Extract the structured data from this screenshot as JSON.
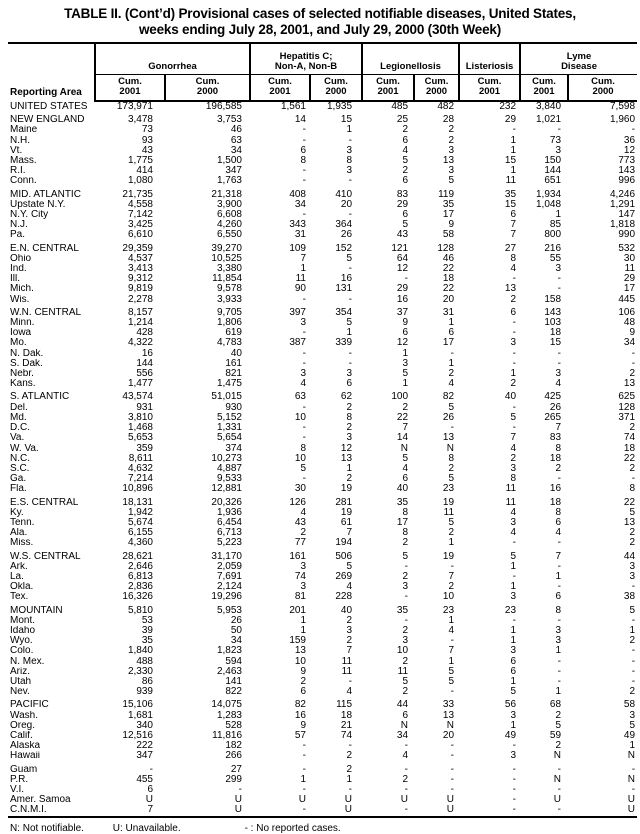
{
  "title": {
    "line1": "TABLE II. (Cont’d) Provisional cases of selected notifiable diseases, United States,",
    "line2": "weeks ending July 28, 2001, and July 29, 2000 (30th Week)"
  },
  "header": {
    "reporting_area": "Reporting Area",
    "groups": [
      {
        "label": "Gonorrhea",
        "span": 2
      },
      {
        "label": "Hepatitis C;\nNon-A, Non-B",
        "span": 2
      },
      {
        "label": "Legionellosis",
        "span": 2
      },
      {
        "label": "Listeriosis",
        "span": 1
      },
      {
        "label": "Lyme\nDisease",
        "span": 2
      }
    ],
    "leaf_cols": [
      {
        "label": "Cum.",
        "year": "2001"
      },
      {
        "label": "Cum.",
        "year": "2000"
      },
      {
        "label": "Cum.",
        "year": "2001"
      },
      {
        "label": "Cum.",
        "year": "2000"
      },
      {
        "label": "Cum.",
        "year": "2001"
      },
      {
        "label": "Cum.",
        "year": "2000"
      },
      {
        "label": "Cum.",
        "year": "2001"
      },
      {
        "label": "Cum.",
        "year": "2001"
      },
      {
        "label": "Cum.",
        "year": "2000"
      }
    ]
  },
  "sections": [
    {
      "rows": [
        [
          "UNITED STATES",
          "173,971",
          "196,585",
          "1,561",
          "1,935",
          "485",
          "482",
          "232",
          "3,840",
          "7,598"
        ]
      ]
    },
    {
      "rows": [
        [
          "NEW ENGLAND",
          "3,478",
          "3,753",
          "14",
          "15",
          "25",
          "28",
          "29",
          "1,021",
          "1,960"
        ],
        [
          "Maine",
          "73",
          "46",
          "-",
          "1",
          "2",
          "2",
          "-",
          "-",
          "-"
        ],
        [
          "N.H.",
          "93",
          "63",
          "-",
          "-",
          "6",
          "2",
          "1",
          "73",
          "36"
        ],
        [
          "Vt.",
          "43",
          "34",
          "6",
          "3",
          "4",
          "3",
          "1",
          "3",
          "12"
        ],
        [
          "Mass.",
          "1,775",
          "1,500",
          "8",
          "8",
          "5",
          "13",
          "15",
          "150",
          "773"
        ],
        [
          "R.I.",
          "414",
          "347",
          "-",
          "3",
          "2",
          "3",
          "1",
          "144",
          "143"
        ],
        [
          "Conn.",
          "1,080",
          "1,763",
          "-",
          "-",
          "6",
          "5",
          "11",
          "651",
          "996"
        ]
      ]
    },
    {
      "rows": [
        [
          "MID. ATLANTIC",
          "21,735",
          "21,318",
          "408",
          "410",
          "83",
          "119",
          "35",
          "1,934",
          "4,246"
        ],
        [
          "Upstate N.Y.",
          "4,558",
          "3,900",
          "34",
          "20",
          "29",
          "35",
          "15",
          "1,048",
          "1,291"
        ],
        [
          "N.Y. City",
          "7,142",
          "6,608",
          "-",
          "-",
          "6",
          "17",
          "6",
          "1",
          "147"
        ],
        [
          "N.J.",
          "3,425",
          "4,260",
          "343",
          "364",
          "5",
          "9",
          "7",
          "85",
          "1,818"
        ],
        [
          "Pa.",
          "6,610",
          "6,550",
          "31",
          "26",
          "43",
          "58",
          "7",
          "800",
          "990"
        ]
      ]
    },
    {
      "rows": [
        [
          "E.N. CENTRAL",
          "29,359",
          "39,270",
          "109",
          "152",
          "121",
          "128",
          "27",
          "216",
          "532"
        ],
        [
          "Ohio",
          "4,537",
          "10,525",
          "7",
          "5",
          "64",
          "46",
          "8",
          "55",
          "30"
        ],
        [
          "Ind.",
          "3,413",
          "3,380",
          "1",
          "-",
          "12",
          "22",
          "4",
          "3",
          "11"
        ],
        [
          "Ill.",
          "9,312",
          "11,854",
          "11",
          "16",
          "-",
          "18",
          "-",
          "-",
          "29"
        ],
        [
          "Mich.",
          "9,819",
          "9,578",
          "90",
          "131",
          "29",
          "22",
          "13",
          "-",
          "17"
        ],
        [
          "Wis.",
          "2,278",
          "3,933",
          "-",
          "-",
          "16",
          "20",
          "2",
          "158",
          "445"
        ]
      ]
    },
    {
      "rows": [
        [
          "W.N. CENTRAL",
          "8,157",
          "9,705",
          "397",
          "354",
          "37",
          "31",
          "6",
          "143",
          "106"
        ],
        [
          "Minn.",
          "1,214",
          "1,806",
          "3",
          "5",
          "9",
          "1",
          "-",
          "103",
          "48"
        ],
        [
          "Iowa",
          "428",
          "619",
          "-",
          "1",
          "6",
          "6",
          "-",
          "18",
          "9"
        ],
        [
          "Mo.",
          "4,322",
          "4,783",
          "387",
          "339",
          "12",
          "17",
          "3",
          "15",
          "34"
        ],
        [
          "N. Dak.",
          "16",
          "40",
          "-",
          "-",
          "1",
          "-",
          "-",
          "-",
          "-"
        ],
        [
          "S. Dak.",
          "144",
          "161",
          "-",
          "-",
          "3",
          "1",
          "-",
          "-",
          "-"
        ],
        [
          "Nebr.",
          "556",
          "821",
          "3",
          "3",
          "5",
          "2",
          "1",
          "3",
          "2"
        ],
        [
          "Kans.",
          "1,477",
          "1,475",
          "4",
          "6",
          "1",
          "4",
          "2",
          "4",
          "13"
        ]
      ]
    },
    {
      "rows": [
        [
          "S. ATLANTIC",
          "43,574",
          "51,015",
          "63",
          "62",
          "100",
          "82",
          "40",
          "425",
          "625"
        ],
        [
          "Del.",
          "931",
          "930",
          "-",
          "2",
          "2",
          "5",
          "-",
          "26",
          "128"
        ],
        [
          "Md.",
          "3,810",
          "5,152",
          "10",
          "8",
          "22",
          "26",
          "5",
          "265",
          "371"
        ],
        [
          "D.C.",
          "1,468",
          "1,331",
          "-",
          "2",
          "7",
          "-",
          "-",
          "7",
          "2"
        ],
        [
          "Va.",
          "5,653",
          "5,654",
          "-",
          "3",
          "14",
          "13",
          "7",
          "83",
          "74"
        ],
        [
          "W. Va.",
          "359",
          "374",
          "8",
          "12",
          "N",
          "N",
          "4",
          "8",
          "18"
        ],
        [
          "N.C.",
          "8,611",
          "10,273",
          "10",
          "13",
          "5",
          "8",
          "2",
          "18",
          "22"
        ],
        [
          "S.C.",
          "4,632",
          "4,887",
          "5",
          "1",
          "4",
          "2",
          "3",
          "2",
          "2"
        ],
        [
          "Ga.",
          "7,214",
          "9,533",
          "-",
          "2",
          "6",
          "5",
          "8",
          "-",
          "-"
        ],
        [
          "Fla.",
          "10,896",
          "12,881",
          "30",
          "19",
          "40",
          "23",
          "11",
          "16",
          "8"
        ]
      ]
    },
    {
      "rows": [
        [
          "E.S. CENTRAL",
          "18,131",
          "20,326",
          "126",
          "281",
          "35",
          "19",
          "11",
          "18",
          "22"
        ],
        [
          "Ky.",
          "1,942",
          "1,936",
          "4",
          "19",
          "8",
          "11",
          "4",
          "8",
          "5"
        ],
        [
          "Tenn.",
          "5,674",
          "6,454",
          "43",
          "61",
          "17",
          "5",
          "3",
          "6",
          "13"
        ],
        [
          "Ala.",
          "6,155",
          "6,713",
          "2",
          "7",
          "8",
          "2",
          "4",
          "4",
          "2"
        ],
        [
          "Miss.",
          "4,360",
          "5,223",
          "77",
          "194",
          "2",
          "1",
          "-",
          "-",
          "2"
        ]
      ]
    },
    {
      "rows": [
        [
          "W.S. CENTRAL",
          "28,621",
          "31,170",
          "161",
          "506",
          "5",
          "19",
          "5",
          "7",
          "44"
        ],
        [
          "Ark.",
          "2,646",
          "2,059",
          "3",
          "5",
          "-",
          "-",
          "1",
          "-",
          "3"
        ],
        [
          "La.",
          "6,813",
          "7,691",
          "74",
          "269",
          "2",
          "7",
          "-",
          "1",
          "3"
        ],
        [
          "Okla.",
          "2,836",
          "2,124",
          "3",
          "4",
          "3",
          "2",
          "1",
          "-",
          "-"
        ],
        [
          "Tex.",
          "16,326",
          "19,296",
          "81",
          "228",
          "-",
          "10",
          "3",
          "6",
          "38"
        ]
      ]
    },
    {
      "rows": [
        [
          "MOUNTAIN",
          "5,810",
          "5,953",
          "201",
          "40",
          "35",
          "23",
          "23",
          "8",
          "5"
        ],
        [
          "Mont.",
          "53",
          "26",
          "1",
          "2",
          "-",
          "1",
          "-",
          "-",
          "-"
        ],
        [
          "Idaho",
          "39",
          "50",
          "1",
          "3",
          "2",
          "4",
          "1",
          "3",
          "1"
        ],
        [
          "Wyo.",
          "35",
          "34",
          "159",
          "2",
          "3",
          "-",
          "1",
          "3",
          "2"
        ],
        [
          "Colo.",
          "1,840",
          "1,823",
          "13",
          "7",
          "10",
          "7",
          "3",
          "1",
          "-"
        ],
        [
          "N. Mex.",
          "488",
          "594",
          "10",
          "11",
          "2",
          "1",
          "6",
          "-",
          "-"
        ],
        [
          "Ariz.",
          "2,330",
          "2,463",
          "9",
          "11",
          "11",
          "5",
          "6",
          "-",
          "-"
        ],
        [
          "Utah",
          "86",
          "141",
          "2",
          "-",
          "5",
          "5",
          "1",
          "-",
          "-"
        ],
        [
          "Nev.",
          "939",
          "822",
          "6",
          "4",
          "2",
          "-",
          "5",
          "1",
          "2"
        ]
      ]
    },
    {
      "rows": [
        [
          "PACIFIC",
          "15,106",
          "14,075",
          "82",
          "115",
          "44",
          "33",
          "56",
          "68",
          "58"
        ],
        [
          "Wash.",
          "1,681",
          "1,283",
          "16",
          "18",
          "6",
          "13",
          "3",
          "2",
          "3"
        ],
        [
          "Oreg.",
          "340",
          "528",
          "9",
          "21",
          "N",
          "N",
          "1",
          "5",
          "5"
        ],
        [
          "Calif.",
          "12,516",
          "11,816",
          "57",
          "74",
          "34",
          "20",
          "49",
          "59",
          "49"
        ],
        [
          "Alaska",
          "222",
          "182",
          "-",
          "-",
          "-",
          "-",
          "-",
          "2",
          "1"
        ],
        [
          "Hawaii",
          "347",
          "266",
          "-",
          "2",
          "4",
          "-",
          "3",
          "N",
          "N"
        ]
      ]
    },
    {
      "rows": [
        [
          "Guam",
          "-",
          "27",
          "-",
          "2",
          "-",
          "-",
          "-",
          "-",
          "-"
        ],
        [
          "P.R.",
          "455",
          "299",
          "1",
          "1",
          "2",
          "-",
          "-",
          "N",
          "N"
        ],
        [
          "V.I.",
          "6",
          "-",
          "-",
          "-",
          "-",
          "-",
          "-",
          "-",
          "-"
        ],
        [
          "Amer. Samoa",
          "U",
          "U",
          "U",
          "U",
          "U",
          "U",
          "-",
          "U",
          "U"
        ],
        [
          "C.N.M.I.",
          "7",
          "U",
          "-",
          "U",
          "-",
          "U",
          "-",
          "-",
          "U"
        ]
      ]
    }
  ],
  "footnotes": [
    "N: Not notifiable.",
    "U: Unavailable.",
    "- : No reported cases."
  ]
}
